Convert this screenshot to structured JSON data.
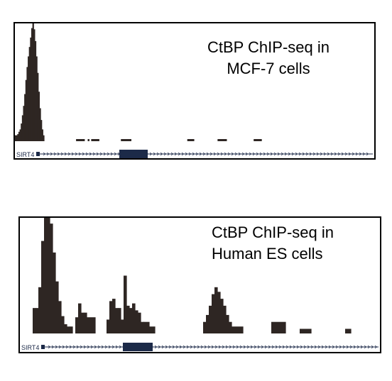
{
  "colors": {
    "signal": "#2e2623",
    "gene_exon": "#1c2a48",
    "gene_line": "#1c2a48",
    "border": "#000000"
  },
  "panels": [
    {
      "caption_line1": "CtBP ChIP-seq in",
      "caption_line2": "MCF-7 cells",
      "gene_label": "SIRT4"
    },
    {
      "caption_line1": "CtBP ChIP-seq in",
      "caption_line2": "Human ES cells",
      "gene_label": "SIRT4"
    }
  ],
  "chart_data": [
    {
      "type": "area",
      "title": "CtBP ChIP-seq in MCF-7 cells",
      "xlabel": "",
      "ylabel": "",
      "x": [
        0,
        2,
        4,
        6,
        8,
        10,
        12,
        14,
        16,
        18,
        20,
        22,
        24,
        26,
        28,
        30,
        32,
        34,
        36,
        38,
        40,
        42,
        44,
        46,
        48,
        50,
        52,
        54,
        56,
        58,
        60,
        62,
        64,
        66,
        68,
        70,
        72,
        74,
        76,
        78,
        80,
        82,
        84,
        86,
        88,
        90,
        92,
        94,
        96,
        98,
        100
      ],
      "series": [
        {
          "values": [
            5,
            5,
            6,
            8,
            10,
            15,
            22,
            30,
            40,
            52,
            63,
            72,
            80,
            88,
            96,
            100,
            95,
            85,
            72,
            58,
            42,
            28,
            18,
            10,
            5,
            0,
            0,
            0,
            0,
            0,
            0,
            0,
            0,
            0,
            0,
            0,
            0,
            0,
            0,
            0,
            0,
            0,
            0,
            0,
            0,
            0,
            0,
            0,
            0,
            0,
            0
          ]
        }
      ],
      "gaps": [
        {
          "start": 105,
          "end": 120,
          "value": 2
        },
        {
          "start": 125,
          "end": 128,
          "value": 2
        },
        {
          "start": 131,
          "end": 145,
          "value": 2
        },
        {
          "start": 182,
          "end": 200,
          "value": 2
        },
        {
          "start": 296,
          "end": 308,
          "value": 2
        },
        {
          "start": 348,
          "end": 364,
          "value": 2
        },
        {
          "start": 410,
          "end": 424,
          "value": 2
        }
      ],
      "ylim": [
        0,
        100
      ],
      "gene": {
        "name": "SIRT4",
        "strand": "+",
        "exon_start": 145,
        "exon_end": 187
      }
    },
    {
      "type": "area",
      "title": "CtBP ChIP-seq in Human ES cells",
      "xlabel": "",
      "ylabel": "",
      "x": [
        0,
        4,
        8,
        12,
        16,
        20,
        24,
        28,
        32,
        36,
        40,
        44,
        48,
        52,
        56,
        60,
        64,
        68,
        72,
        76,
        80,
        84,
        88,
        92,
        96,
        100,
        104,
        108
      ],
      "series": [
        {
          "values": [
            0,
            22,
            22,
            40,
            80,
            100,
            100,
            95,
            70,
            45,
            28,
            15,
            8,
            6,
            6,
            0,
            0,
            0,
            0,
            0,
            0,
            0,
            0,
            0,
            0,
            0,
            0,
            0
          ]
        }
      ],
      "peaks": [
        {
          "start": 60,
          "end": 64,
          "value": 0
        },
        {
          "start": 64,
          "end": 68,
          "value": 14
        },
        {
          "start": 68,
          "end": 72,
          "value": 26
        },
        {
          "start": 72,
          "end": 76,
          "value": 18
        },
        {
          "start": 76,
          "end": 80,
          "value": 18
        },
        {
          "start": 80,
          "end": 92,
          "value": 14
        },
        {
          "start": 104,
          "end": 108,
          "value": 0
        },
        {
          "start": 108,
          "end": 112,
          "value": 12
        },
        {
          "start": 112,
          "end": 116,
          "value": 28
        },
        {
          "start": 116,
          "end": 120,
          "value": 30
        },
        {
          "start": 120,
          "end": 124,
          "value": 22
        },
        {
          "start": 124,
          "end": 128,
          "value": 22
        },
        {
          "start": 128,
          "end": 132,
          "value": 12
        },
        {
          "start": 132,
          "end": 136,
          "value": 50
        },
        {
          "start": 136,
          "end": 140,
          "value": 24
        },
        {
          "start": 140,
          "end": 144,
          "value": 22
        },
        {
          "start": 144,
          "end": 148,
          "value": 26
        },
        {
          "start": 148,
          "end": 152,
          "value": 20
        },
        {
          "start": 152,
          "end": 156,
          "value": 18
        },
        {
          "start": 156,
          "end": 160,
          "value": 10
        },
        {
          "start": 160,
          "end": 168,
          "value": 10
        },
        {
          "start": 168,
          "end": 176,
          "value": 6
        },
        {
          "start": 240,
          "end": 244,
          "value": 0
        },
        {
          "start": 244,
          "end": 248,
          "value": 10
        },
        {
          "start": 248,
          "end": 252,
          "value": 16
        },
        {
          "start": 252,
          "end": 256,
          "value": 24
        },
        {
          "start": 256,
          "end": 260,
          "value": 34
        },
        {
          "start": 260,
          "end": 264,
          "value": 40
        },
        {
          "start": 264,
          "end": 268,
          "value": 36
        },
        {
          "start": 268,
          "end": 272,
          "value": 30
        },
        {
          "start": 272,
          "end": 276,
          "value": 24
        },
        {
          "start": 276,
          "end": 280,
          "value": 16
        },
        {
          "start": 280,
          "end": 284,
          "value": 10
        },
        {
          "start": 284,
          "end": 300,
          "value": 6
        },
        {
          "start": 340,
          "end": 360,
          "value": 10
        },
        {
          "start": 380,
          "end": 396,
          "value": 4
        },
        {
          "start": 444,
          "end": 452,
          "value": 4
        }
      ],
      "ylim": [
        0,
        100
      ],
      "gene": {
        "name": "SIRT4",
        "strand": "+",
        "exon_start": 145,
        "exon_end": 187
      }
    }
  ]
}
